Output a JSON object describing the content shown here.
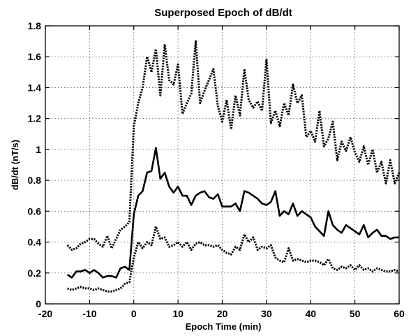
{
  "chart_data": {
    "type": "line",
    "title": "Superposed Epoch of dB/dt",
    "xlabel": "Epoch Time (min)",
    "ylabel": "dB/dt (nT/s)",
    "xlim": [
      -20,
      60
    ],
    "ylim": [
      0,
      1.8
    ],
    "xticks": [
      -20,
      -10,
      0,
      10,
      20,
      30,
      40,
      50,
      60
    ],
    "yticks": [
      0,
      0.2,
      0.4,
      0.6,
      0.8,
      1,
      1.2,
      1.4,
      1.6,
      1.8
    ],
    "xtick_labels": [
      "-20",
      "-10",
      "0",
      "10",
      "20",
      "30",
      "40",
      "50",
      "60"
    ],
    "ytick_labels": [
      "0",
      "0.2",
      "0.4",
      "0.6",
      "0.8",
      "1",
      "1.2",
      "1.4",
      "1.6",
      "1.8"
    ],
    "grid": true,
    "x": [
      -15,
      -14,
      -13,
      -12,
      -11,
      -10,
      -9,
      -8,
      -7,
      -6,
      -5,
      -4,
      -3,
      -2,
      -1,
      0,
      1,
      2,
      3,
      4,
      5,
      6,
      7,
      8,
      9,
      10,
      11,
      12,
      13,
      14,
      15,
      16,
      17,
      18,
      19,
      20,
      21,
      22,
      23,
      24,
      25,
      26,
      27,
      28,
      29,
      30,
      31,
      32,
      33,
      34,
      35,
      36,
      37,
      38,
      39,
      40,
      41,
      42,
      43,
      44,
      45,
      46,
      47,
      48,
      49,
      50,
      51,
      52,
      53,
      54,
      55,
      56,
      57,
      58,
      59,
      60
    ],
    "series": [
      {
        "style": "dotted",
        "values": [
          0.38,
          0.35,
          0.36,
          0.39,
          0.4,
          0.42,
          0.42,
          0.39,
          0.37,
          0.44,
          0.36,
          0.42,
          0.48,
          0.5,
          0.53,
          1.15,
          1.3,
          1.4,
          1.6,
          1.5,
          1.65,
          1.35,
          1.68,
          1.45,
          1.42,
          1.55,
          1.23,
          1.3,
          1.36,
          1.7,
          1.3,
          1.38,
          1.45,
          1.52,
          1.28,
          1.18,
          1.32,
          1.13,
          1.35,
          1.22,
          1.52,
          1.32,
          1.27,
          1.31,
          1.25,
          1.58,
          1.17,
          1.25,
          1.15,
          1.3,
          1.22,
          1.42,
          1.3,
          1.35,
          1.08,
          1.12,
          1.05,
          1.25,
          1.02,
          1.07,
          1.18,
          0.93,
          1.05,
          0.99,
          1.08,
          0.98,
          0.92,
          1.02,
          0.9,
          1.0,
          0.85,
          0.92,
          0.78,
          0.93,
          0.78,
          0.85
        ]
      },
      {
        "style": "solid",
        "values": [
          0.19,
          0.17,
          0.21,
          0.21,
          0.22,
          0.2,
          0.22,
          0.2,
          0.17,
          0.18,
          0.18,
          0.17,
          0.23,
          0.24,
          0.22,
          0.58,
          0.7,
          0.73,
          0.85,
          0.86,
          1.01,
          0.81,
          0.85,
          0.76,
          0.72,
          0.76,
          0.7,
          0.7,
          0.64,
          0.7,
          0.72,
          0.73,
          0.69,
          0.68,
          0.71,
          0.63,
          0.63,
          0.63,
          0.65,
          0.6,
          0.73,
          0.72,
          0.7,
          0.68,
          0.65,
          0.64,
          0.66,
          0.73,
          0.57,
          0.6,
          0.58,
          0.65,
          0.57,
          0.6,
          0.58,
          0.56,
          0.5,
          0.47,
          0.44,
          0.6,
          0.51,
          0.48,
          0.46,
          0.51,
          0.49,
          0.47,
          0.45,
          0.51,
          0.43,
          0.46,
          0.48,
          0.44,
          0.44,
          0.42,
          0.43,
          0.43
        ]
      },
      {
        "style": "dotted",
        "values": [
          0.1,
          0.09,
          0.1,
          0.11,
          0.1,
          0.1,
          0.09,
          0.1,
          0.09,
          0.08,
          0.08,
          0.09,
          0.1,
          0.13,
          0.14,
          0.3,
          0.4,
          0.36,
          0.4,
          0.38,
          0.5,
          0.42,
          0.43,
          0.37,
          0.38,
          0.4,
          0.37,
          0.4,
          0.35,
          0.39,
          0.4,
          0.38,
          0.38,
          0.37,
          0.38,
          0.35,
          0.33,
          0.32,
          0.37,
          0.35,
          0.45,
          0.4,
          0.43,
          0.35,
          0.37,
          0.36,
          0.38,
          0.3,
          0.28,
          0.27,
          0.36,
          0.28,
          0.29,
          0.28,
          0.27,
          0.28,
          0.28,
          0.27,
          0.25,
          0.29,
          0.23,
          0.22,
          0.24,
          0.23,
          0.25,
          0.22,
          0.25,
          0.22,
          0.23,
          0.21,
          0.23,
          0.22,
          0.21,
          0.21,
          0.22,
          0.21
        ]
      }
    ]
  }
}
